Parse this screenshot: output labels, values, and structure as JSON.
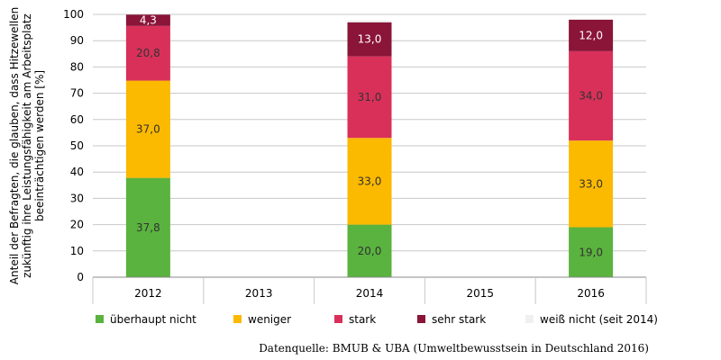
{
  "chart_data": {
    "type": "bar",
    "stacked": true,
    "categories": [
      "2012",
      "2013",
      "2014",
      "2015",
      "2016"
    ],
    "series": [
      {
        "name": "überhaupt nicht",
        "color": "#5ab33e",
        "values": [
          37.8,
          null,
          20.0,
          null,
          19.0
        ],
        "labels": [
          "37,8",
          "",
          "20,0",
          "",
          "19,0"
        ]
      },
      {
        "name": "weniger",
        "color": "#fbb900",
        "values": [
          37.0,
          null,
          33.0,
          null,
          33.0
        ],
        "labels": [
          "37,0",
          "",
          "33,0",
          "",
          "33,0"
        ]
      },
      {
        "name": "stark",
        "color": "#d9305a",
        "values": [
          20.8,
          null,
          31.0,
          null,
          34.0
        ],
        "labels": [
          "20,8",
          "",
          "31,0",
          "",
          "34,0"
        ]
      },
      {
        "name": "sehr stark",
        "color": "#8a1538",
        "values": [
          4.3,
          null,
          13.0,
          null,
          12.0
        ],
        "labels": [
          "4,3",
          "",
          "13,0",
          "",
          "12,0"
        ]
      },
      {
        "name": "weiß nicht (seit 2014)",
        "color": "#f0f0f0",
        "values": [
          null,
          null,
          0.7,
          null,
          0.3
        ],
        "labels": [
          "",
          "",
          "",
          "",
          ""
        ]
      }
    ],
    "yticks": [
      "0",
      "10",
      "20",
      "30",
      "40",
      "50",
      "60",
      "70",
      "80",
      "90",
      "100"
    ],
    "ylim": [
      0,
      100
    ],
    "ylabel": [
      "Anteil der Befragten, die  glauben, dass Hitzewellen",
      "zukünftig ihre Leistungsfähigkeit am Arbeitsplatz",
      "beeinträchtigen werden [%]"
    ],
    "xlabel": "",
    "grid": "horizontal",
    "legend_position": "bottom",
    "source": "Datenquelle: BMUB & UBA (Umweltbewusstsein in Deutschland 2016)"
  }
}
